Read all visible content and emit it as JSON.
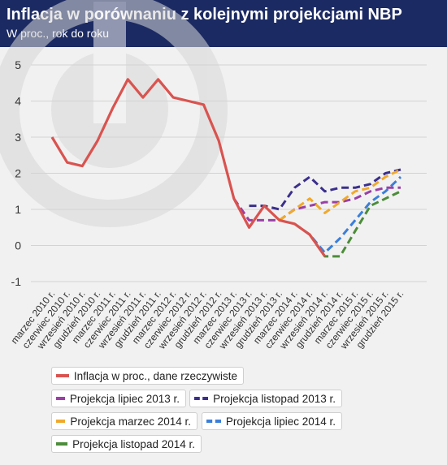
{
  "header": {
    "title": "Inflacja w porównaniu z kolejnymi projekcjami NBP",
    "subtitle": "W proc., rok do roku"
  },
  "chart_data": {
    "type": "line",
    "ylim": [
      -1,
      5
    ],
    "yticks": [
      "-1",
      "0",
      "1",
      "2",
      "3",
      "4",
      "5"
    ],
    "xlabels": [
      "marzec 2010 r.",
      "czerwiec 2010 r.",
      "wrzesień 2010 r.",
      "grudzień 2010 r.",
      "marzec 2011 r.",
      "czerwiec 2011 r.",
      "wrzesień 2011 r.",
      "grudzień 2011 r.",
      "marzec 2012 r.",
      "czerwiec 2012 r.",
      "wrzesień 2012 r.",
      "grudzień 2012 r.",
      "marzec 2013 r.",
      "czerwiec 2013 r.",
      "wrzesień 2013 r.",
      "grudzień 2013 r.",
      "marzec 2014 r.",
      "czerwiec 2014 r.",
      "wrzesień 2014 r.",
      "grudzień 2014 r.",
      "marzec 2015 r.",
      "czerwiec 2015 r.",
      "wrzesień 2015 r.",
      "grudzień 2015 r."
    ],
    "grid": true,
    "series": [
      {
        "name": "Inflacja w proc., dane rzeczywiste",
        "color": "#d9534f",
        "dashed": false,
        "points": [
          [
            0,
            3.0
          ],
          [
            1,
            2.3
          ],
          [
            2,
            2.2
          ],
          [
            3,
            2.9
          ],
          [
            4,
            3.8
          ],
          [
            5,
            4.6
          ],
          [
            6,
            4.1
          ],
          [
            7,
            4.6
          ],
          [
            8,
            4.1
          ],
          [
            9,
            4.0
          ],
          [
            10,
            3.9
          ],
          [
            11,
            2.9
          ],
          [
            12,
            1.3
          ],
          [
            13,
            0.5
          ],
          [
            14,
            1.1
          ],
          [
            15,
            0.7
          ],
          [
            16,
            0.6
          ],
          [
            17,
            0.3
          ],
          [
            18,
            -0.3
          ]
        ]
      },
      {
        "name": "Projekcja lipiec 2013 r.",
        "color": "#9b3fa6",
        "dashed": true,
        "points": [
          [
            12,
            1.3
          ],
          [
            13,
            0.7
          ],
          [
            14,
            0.7
          ],
          [
            15,
            0.7
          ],
          [
            16,
            1.0
          ],
          [
            17,
            1.1
          ],
          [
            18,
            1.2
          ],
          [
            19,
            1.2
          ],
          [
            20,
            1.3
          ],
          [
            21,
            1.5
          ],
          [
            22,
            1.6
          ],
          [
            23,
            1.6
          ]
        ]
      },
      {
        "name": "Projekcja listopad 2013 r.",
        "color": "#3a2f8c",
        "dashed": true,
        "points": [
          [
            13,
            1.1
          ],
          [
            14,
            1.1
          ],
          [
            15,
            1.0
          ],
          [
            16,
            1.6
          ],
          [
            17,
            1.9
          ],
          [
            18,
            1.5
          ],
          [
            19,
            1.6
          ],
          [
            20,
            1.6
          ],
          [
            21,
            1.7
          ],
          [
            22,
            2.0
          ],
          [
            23,
            2.1
          ]
        ]
      },
      {
        "name": "Projekcja marzec 2014 r.",
        "color": "#f0a92c",
        "dashed": true,
        "points": [
          [
            15,
            0.7
          ],
          [
            16,
            1.0
          ],
          [
            17,
            1.3
          ],
          [
            18,
            0.9
          ],
          [
            19,
            1.2
          ],
          [
            20,
            1.5
          ],
          [
            21,
            1.6
          ],
          [
            22,
            1.9
          ],
          [
            23,
            2.1
          ]
        ]
      },
      {
        "name": "Projekcja lipiec 2014 r.",
        "color": "#3b7fd9",
        "dashed": true,
        "points": [
          [
            16,
            0.6
          ],
          [
            17,
            0.3
          ],
          [
            18,
            -0.2
          ],
          [
            19,
            0.2
          ],
          [
            20,
            0.7
          ],
          [
            21,
            1.2
          ],
          [
            22,
            1.5
          ],
          [
            23,
            1.9
          ]
        ]
      },
      {
        "name": "Projekcja listopad 2014 r.",
        "color": "#4c8c3a",
        "dashed": true,
        "points": [
          [
            17,
            0.3
          ],
          [
            18,
            -0.3
          ],
          [
            19,
            -0.3
          ],
          [
            20,
            0.4
          ],
          [
            21,
            1.1
          ],
          [
            22,
            1.3
          ],
          [
            23,
            1.5
          ]
        ]
      }
    ]
  }
}
